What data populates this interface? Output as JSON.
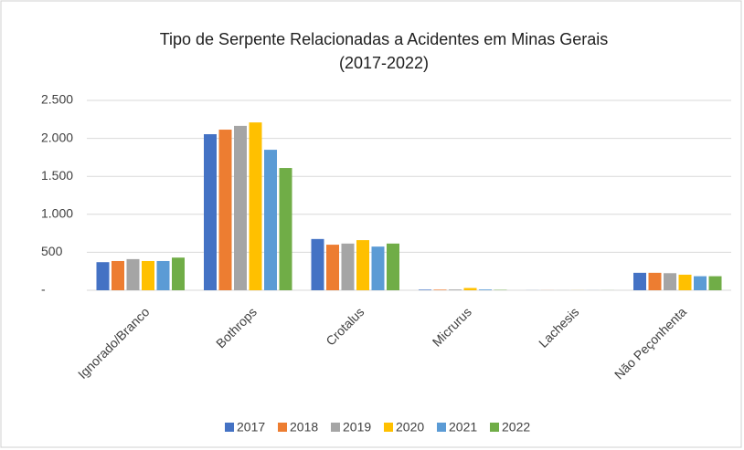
{
  "chart_data": {
    "type": "bar",
    "title_lines": [
      "Tipo de Serpente Relacionadas a Acidentes em Minas Gerais",
      "(2017-2022)"
    ],
    "categories": [
      "Ignorado/Branco",
      "Bothrops",
      "Crotalus",
      "Micrurus",
      "Lachesis",
      "Não Peçonhenta"
    ],
    "series": [
      {
        "name": "2017",
        "color": "#4472c4",
        "values": [
          370,
          2055,
          675,
          8,
          1,
          230
        ]
      },
      {
        "name": "2018",
        "color": "#ed7d31",
        "values": [
          385,
          2115,
          600,
          8,
          1,
          230
        ]
      },
      {
        "name": "2019",
        "color": "#a5a5a5",
        "values": [
          410,
          2165,
          615,
          10,
          1,
          225
        ]
      },
      {
        "name": "2020",
        "color": "#ffc000",
        "values": [
          385,
          2210,
          660,
          30,
          1,
          205
        ]
      },
      {
        "name": "2021",
        "color": "#5b9bd5",
        "values": [
          385,
          1850,
          575,
          10,
          1,
          185
        ]
      },
      {
        "name": "2022",
        "color": "#70ad47",
        "values": [
          430,
          1610,
          615,
          5,
          1,
          185
        ]
      }
    ],
    "ylim": [
      0,
      2500
    ],
    "yticks": [
      {
        "value": 0,
        "label": "-"
      },
      500,
      {
        "value": 1000,
        "label": "1.000"
      },
      {
        "value": 1500,
        "label": "1.500"
      },
      {
        "value": 2000,
        "label": "2.000"
      },
      {
        "value": 2500,
        "label": "2.500"
      }
    ],
    "grid": true,
    "legend": "bottom"
  }
}
